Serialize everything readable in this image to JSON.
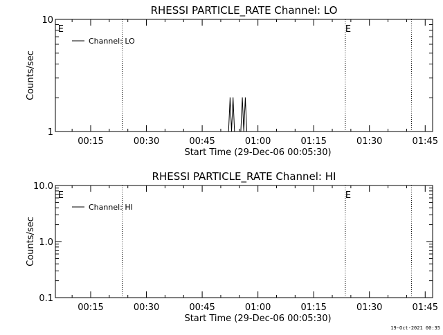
{
  "footer_timestamp": "19-Oct-2021 00:35",
  "chart_data": [
    {
      "type": "line",
      "title": "RHESSI PARTICLE_RATE Channel: LO",
      "xlabel": "Start Time (29-Dec-06 00:05:30)",
      "ylabel": "Counts/sec",
      "yscale": "log",
      "ylim": [
        1,
        10
      ],
      "xlim_minutes": [
        5.5,
        107
      ],
      "x_tick_labels": [
        "00:15",
        "00:30",
        "00:45",
        "01:00",
        "01:15",
        "01:30",
        "01:45"
      ],
      "x_tick_minutes": [
        15,
        30,
        45,
        60,
        75,
        90,
        105
      ],
      "x_minor_step_minutes": 5,
      "y_tick_labels": [
        "1",
        "10"
      ],
      "y_tick_values": [
        1,
        10
      ],
      "y_minor_values": [
        2,
        3,
        4,
        5,
        6,
        7,
        8,
        9
      ],
      "legend": "top-left",
      "series": [
        {
          "name": "Channel: LO",
          "x_minutes": [
            52.1,
            52.5,
            52.9,
            53.3,
            53.7,
            55.4,
            55.8,
            56.2,
            56.6,
            57.0
          ],
          "values": [
            1,
            2,
            1,
            2,
            1,
            1,
            2,
            1,
            2,
            1
          ]
        }
      ],
      "markers": [
        {
          "x_minutes": 6.2,
          "label": "E",
          "line": false
        },
        {
          "x_minutes": 23.5,
          "label": "",
          "line": true
        },
        {
          "x_minutes": 83.5,
          "label": "E",
          "line": true
        },
        {
          "x_minutes": 101.3,
          "label": "",
          "line": true
        }
      ]
    },
    {
      "type": "line",
      "title": "RHESSI PARTICLE_RATE Channel: HI",
      "xlabel": "Start Time (29-Dec-06 00:05:30)",
      "ylabel": "Counts/sec",
      "yscale": "log",
      "ylim": [
        0.1,
        10
      ],
      "xlim_minutes": [
        5.5,
        107
      ],
      "x_tick_labels": [
        "00:15",
        "00:30",
        "00:45",
        "01:00",
        "01:15",
        "01:30",
        "01:45"
      ],
      "x_tick_minutes": [
        15,
        30,
        45,
        60,
        75,
        90,
        105
      ],
      "x_minor_step_minutes": 5,
      "y_tick_labels": [
        "0.1",
        "1.0",
        "10.0"
      ],
      "y_tick_values": [
        0.1,
        1,
        10
      ],
      "y_minor_values": [
        0.2,
        0.3,
        0.4,
        0.5,
        0.6,
        0.7,
        0.8,
        0.9,
        2,
        3,
        4,
        5,
        6,
        7,
        8,
        9
      ],
      "legend": "top-left",
      "series": [
        {
          "name": "Channel: HI",
          "x_minutes": [],
          "values": []
        }
      ],
      "markers": [
        {
          "x_minutes": 6.2,
          "label": "E",
          "line": false
        },
        {
          "x_minutes": 23.5,
          "label": "",
          "line": true
        },
        {
          "x_minutes": 83.5,
          "label": "E",
          "line": true
        },
        {
          "x_minutes": 101.3,
          "label": "",
          "line": true
        }
      ]
    }
  ]
}
